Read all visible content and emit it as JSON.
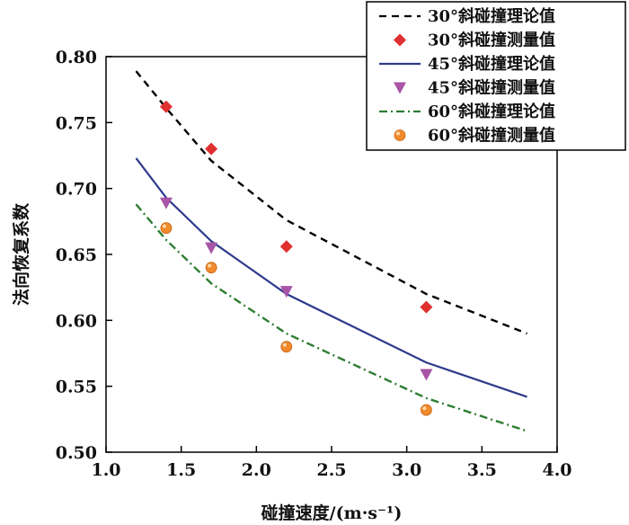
{
  "chart_data": {
    "type": "line",
    "xlabel": "碰撞速度/(m·s⁻¹)",
    "ylabel": "法向恢复系数",
    "xlim": [
      1.0,
      4.0
    ],
    "ylim": [
      0.5,
      0.8
    ],
    "xticks": [
      "1.0",
      "1.5",
      "2.0",
      "2.5",
      "3.0",
      "3.5",
      "4.0"
    ],
    "yticks": [
      "0.50",
      "0.55",
      "0.60",
      "0.65",
      "0.70",
      "0.75",
      "0.80"
    ],
    "legend_position": "top-right",
    "series": [
      {
        "name": "30°斜碰撞理论值",
        "kind": "line",
        "style": "dashed",
        "color": "#000000",
        "x": [
          1.2,
          1.4,
          1.7,
          2.2,
          3.13,
          3.8
        ],
        "y": [
          0.789,
          0.761,
          0.721,
          0.676,
          0.62,
          0.59
        ]
      },
      {
        "name": "30°斜碰撞测量值",
        "kind": "marker",
        "marker": "diamond",
        "color": "#e03030",
        "x": [
          1.4,
          1.7,
          2.2,
          3.13
        ],
        "y": [
          0.762,
          0.73,
          0.656,
          0.61
        ]
      },
      {
        "name": "45°斜碰撞理论值",
        "kind": "line",
        "style": "solid",
        "color": "#2e3a8c",
        "x": [
          1.2,
          1.4,
          1.7,
          2.2,
          3.13,
          3.8
        ],
        "y": [
          0.723,
          0.693,
          0.66,
          0.62,
          0.568,
          0.542
        ]
      },
      {
        "name": "45°斜碰撞测量值",
        "kind": "marker",
        "marker": "triangle-down",
        "color": "#a855a8",
        "x": [
          1.4,
          1.7,
          2.2,
          3.13
        ],
        "y": [
          0.689,
          0.655,
          0.622,
          0.559
        ]
      },
      {
        "name": "60°斜碰撞理论值",
        "kind": "line",
        "style": "dashdot",
        "color": "#2e7d32",
        "x": [
          1.2,
          1.4,
          1.7,
          2.2,
          3.13,
          3.8
        ],
        "y": [
          0.688,
          0.661,
          0.628,
          0.59,
          0.541,
          0.516
        ]
      },
      {
        "name": "60°斜碰撞测量值",
        "kind": "marker",
        "marker": "circle",
        "color": "#f08a2c",
        "x": [
          1.4,
          1.7,
          2.2,
          3.13
        ],
        "y": [
          0.67,
          0.64,
          0.58,
          0.532
        ]
      }
    ]
  }
}
